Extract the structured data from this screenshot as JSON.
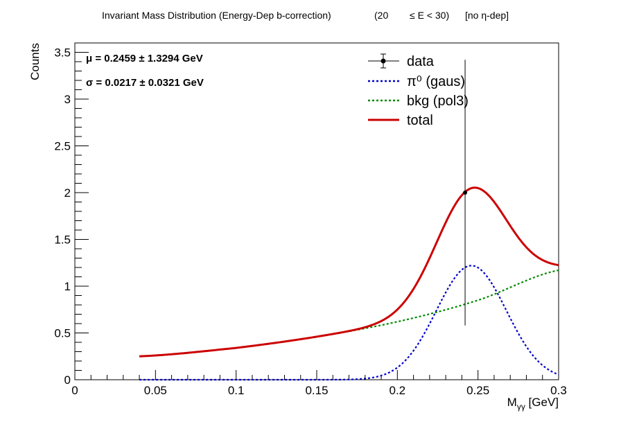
{
  "title": {
    "main": "Invariant Mass Distribution (Energy-Dep b-correction)",
    "range_open": "(20",
    "range_mid": "≤ E < 30)",
    "eta": "[no  η-dep]"
  },
  "stats": {
    "mu": "μ = 0.2459  ± 1.3294 GeV",
    "sigma": "σ = 0.0217  ± 0.0321 GeV"
  },
  "legend": {
    "data": "data",
    "pi0": "π⁰ (gaus)",
    "bkg": "bkg (pol3)",
    "total": "total"
  },
  "colors": {
    "data": "#000000",
    "pi0": "#0000cc",
    "bkg": "#008800",
    "total": "#cc0000"
  },
  "chart_data": {
    "type": "line",
    "xlabel": "Mγγ  [GeV]",
    "ylabel": "Counts",
    "xlim": [
      0,
      0.3
    ],
    "ylim": [
      0,
      3.6
    ],
    "xticks": [
      "0",
      "0.05",
      "0.1",
      "0.15",
      "0.2",
      "0.25",
      "0.3"
    ],
    "yticks": [
      "0",
      "0.5",
      "1",
      "1.5",
      "2",
      "2.5",
      "3",
      "3.5"
    ],
    "grid": false,
    "legend_position": "top-right",
    "fit_range": [
      0.04,
      0.3
    ],
    "data_points": [
      {
        "x": 0.242,
        "y": 2.0,
        "yerr_low": 1.42,
        "yerr_high": 1.42
      }
    ],
    "series": [
      {
        "name": "π⁰ (gaus)",
        "model": "gaus",
        "amplitude": 1.22,
        "mean": 0.2459,
        "sigma": 0.0217
      },
      {
        "name": "bkg (pol3)",
        "model": "pol3",
        "points": [
          [
            0.04,
            0.25
          ],
          [
            0.1,
            0.34
          ],
          [
            0.15,
            0.46
          ],
          [
            0.2,
            0.62
          ],
          [
            0.25,
            0.85
          ],
          [
            0.3,
            1.17
          ]
        ]
      },
      {
        "name": "total",
        "model": "gaus+pol3"
      }
    ]
  }
}
